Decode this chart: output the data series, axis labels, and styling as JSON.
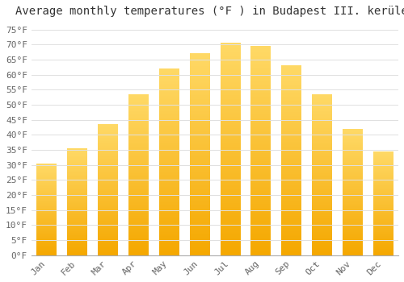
{
  "title": "Average monthly temperatures (°F ) in Budapest III. kerület",
  "months": [
    "Jan",
    "Feb",
    "Mar",
    "Apr",
    "May",
    "Jun",
    "Jul",
    "Aug",
    "Sep",
    "Oct",
    "Nov",
    "Dec"
  ],
  "values": [
    30.5,
    35.5,
    43.5,
    53.5,
    62,
    67,
    70.5,
    69.5,
    63,
    53.5,
    42,
    34.5
  ],
  "bar_color_top": "#F5A800",
  "bar_color_bottom": "#FFD966",
  "background_color": "#ffffff",
  "grid_color": "#e0e0e0",
  "ylim": [
    0,
    77
  ],
  "yticks": [
    0,
    5,
    10,
    15,
    20,
    25,
    30,
    35,
    40,
    45,
    50,
    55,
    60,
    65,
    70,
    75
  ],
  "title_fontsize": 10,
  "tick_fontsize": 8,
  "font_family": "monospace",
  "bar_width": 0.65
}
